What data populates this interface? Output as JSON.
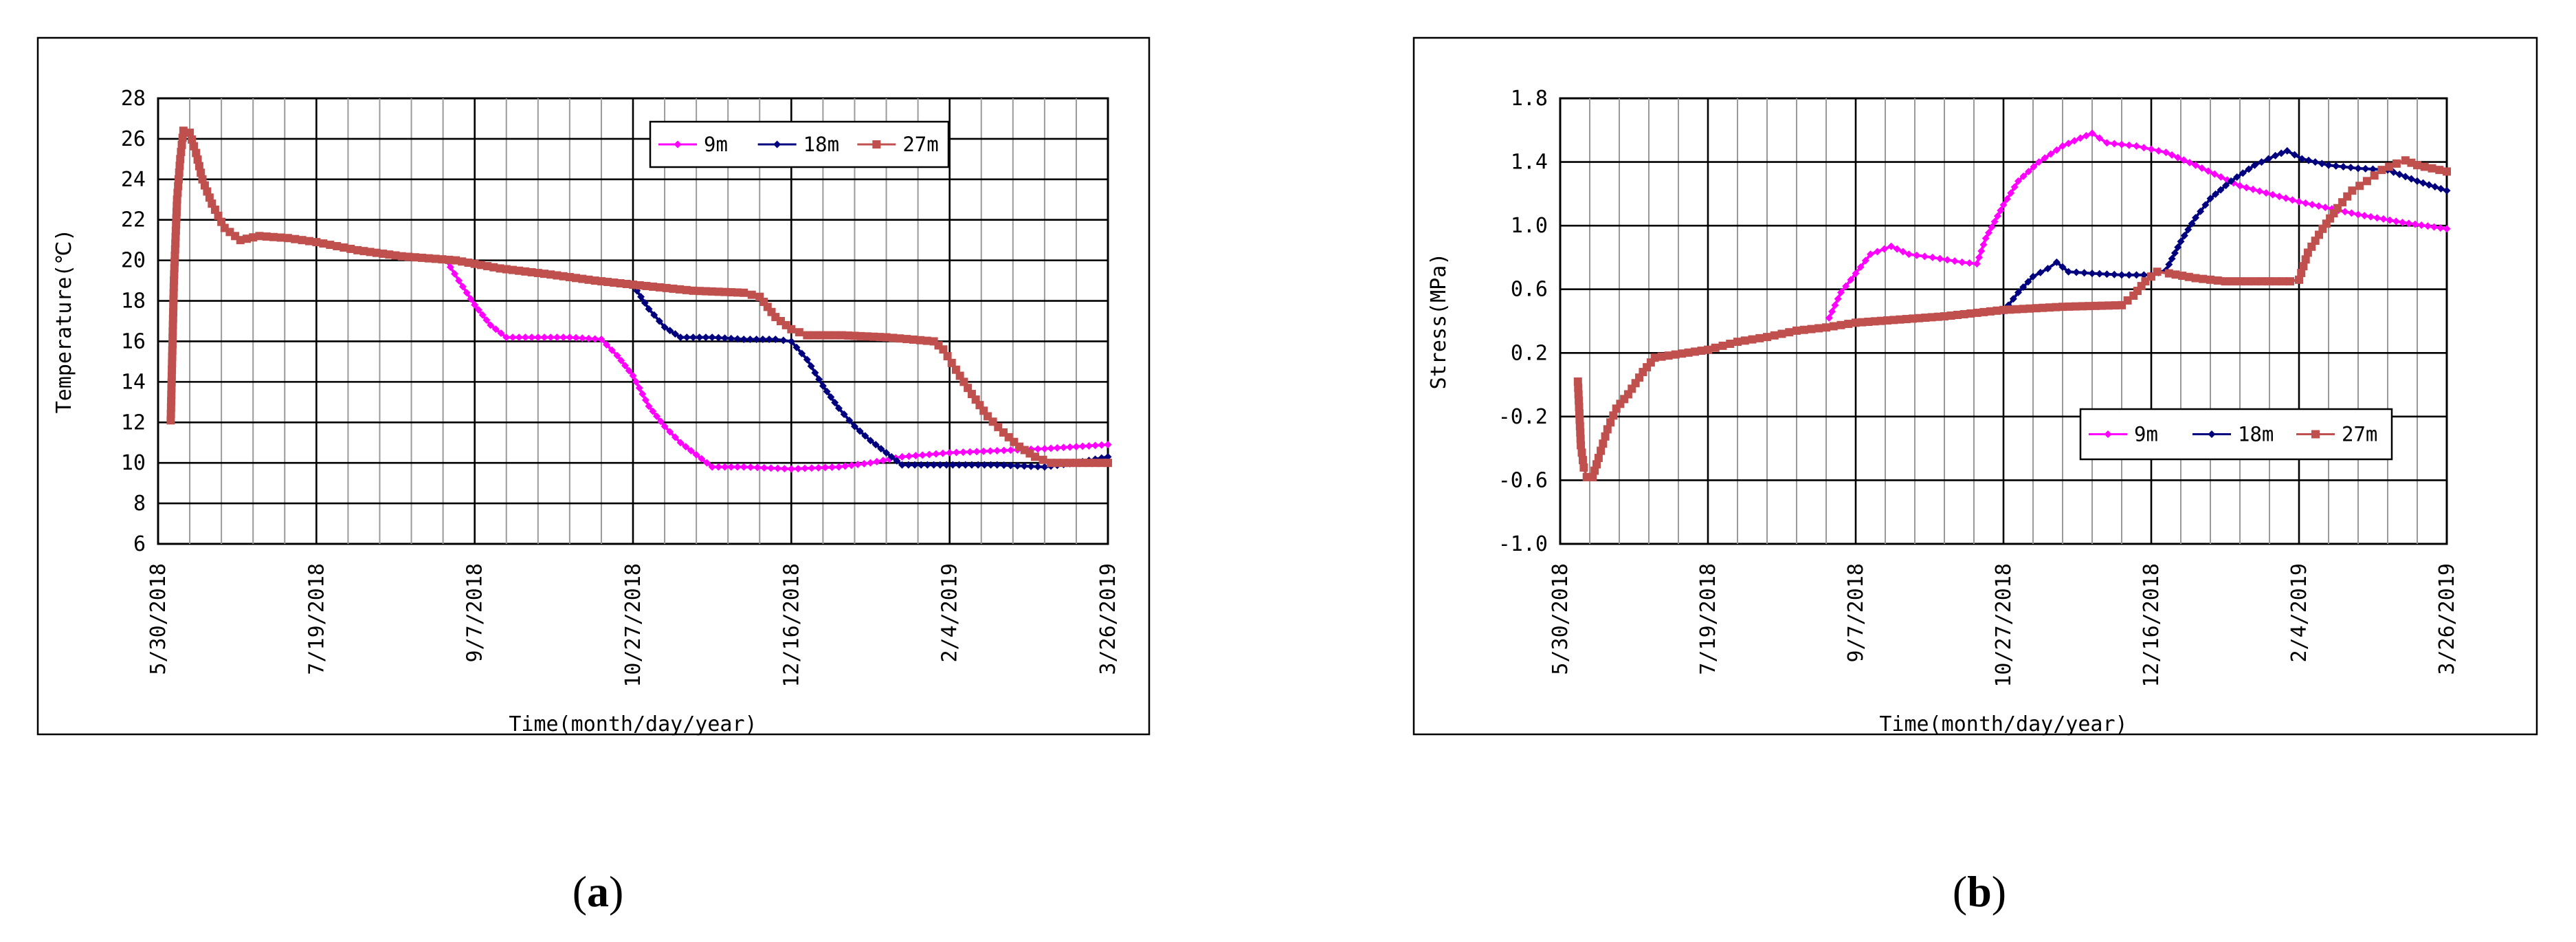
{
  "panels": [
    {
      "label_open": "(",
      "label_letter": "a",
      "label_close": ")"
    },
    {
      "label_open": "(",
      "label_letter": "b",
      "label_close": ")"
    }
  ],
  "chart_data": [
    {
      "type": "line",
      "title": "",
      "xlabel": "Time(month/day/year)",
      "ylabel": "Temperature(℃)",
      "ylim": [
        6,
        28
      ],
      "yticks": [
        "6",
        "8",
        "10",
        "12",
        "14",
        "16",
        "18",
        "20",
        "22",
        "24",
        "26",
        "28"
      ],
      "xlim": [
        "5/30/2018",
        "3/26/2019"
      ],
      "xticks": [
        "5/30/2018",
        "7/19/2018",
        "9/7/2018",
        "10/27/2018",
        "12/16/2018",
        "2/4/2019",
        "3/26/2019"
      ],
      "grid": true,
      "legend": "top-right",
      "series": [
        {
          "name": "9m",
          "color": "#ff00ff",
          "marker": "diamond",
          "points": [
            [
              "8/29/2018",
              20.0
            ],
            [
              "9/2/2018",
              19.0
            ],
            [
              "9/7/2018",
              17.8
            ],
            [
              "9/12/2018",
              16.8
            ],
            [
              "9/17/2018",
              16.2
            ],
            [
              "9/27/2018",
              16.2
            ],
            [
              "10/7/2018",
              16.2
            ],
            [
              "10/17/2018",
              16.1
            ],
            [
              "10/22/2018",
              15.3
            ],
            [
              "10/27/2018",
              14.3
            ],
            [
              "11/1/2018",
              12.8
            ],
            [
              "11/6/2018",
              11.8
            ],
            [
              "11/11/2018",
              11.0
            ],
            [
              "11/16/2018",
              10.4
            ],
            [
              "11/21/2018",
              9.8
            ],
            [
              "12/1/2018",
              9.8
            ],
            [
              "12/16/2018",
              9.7
            ],
            [
              "12/31/2018",
              9.8
            ],
            [
              "1/10/2019",
              10.0
            ],
            [
              "1/20/2019",
              10.3
            ],
            [
              "2/4/2019",
              10.5
            ],
            [
              "2/19/2019",
              10.6
            ],
            [
              "3/6/2019",
              10.7
            ],
            [
              "3/26/2019",
              10.9
            ]
          ]
        },
        {
          "name": "18m",
          "color": "#00007f",
          "marker": "diamond",
          "points": [
            [
              "10/27/2018",
              18.8
            ],
            [
              "11/1/2018",
              17.6
            ],
            [
              "11/6/2018",
              16.7
            ],
            [
              "11/11/2018",
              16.2
            ],
            [
              "11/21/2018",
              16.2
            ],
            [
              "12/1/2018",
              16.1
            ],
            [
              "12/11/2018",
              16.1
            ],
            [
              "12/16/2018",
              16.0
            ],
            [
              "12/21/2018",
              15.1
            ],
            [
              "12/26/2018",
              13.8
            ],
            [
              "12/31/2018",
              12.7
            ],
            [
              "1/5/2019",
              11.8
            ],
            [
              "1/10/2019",
              11.1
            ],
            [
              "1/15/2019",
              10.5
            ],
            [
              "1/20/2019",
              9.9
            ],
            [
              "1/30/2019",
              9.9
            ],
            [
              "2/9/2019",
              9.9
            ],
            [
              "2/19/2019",
              9.9
            ],
            [
              "3/6/2019",
              9.8
            ],
            [
              "3/16/2019",
              10.0
            ],
            [
              "3/26/2019",
              10.3
            ]
          ]
        },
        {
          "name": "27m",
          "color": "#c0504d",
          "marker": "square",
          "points": [
            [
              "6/3/2018",
              12.1
            ],
            [
              "6/4/2018",
              19.0
            ],
            [
              "6/5/2018",
              23.0
            ],
            [
              "6/6/2018",
              25.0
            ],
            [
              "6/7/2018",
              26.4
            ],
            [
              "6/9/2018",
              26.3
            ],
            [
              "6/11/2018",
              25.3
            ],
            [
              "6/13/2018",
              24.0
            ],
            [
              "6/16/2018",
              22.8
            ],
            [
              "6/20/2018",
              21.6
            ],
            [
              "6/25/2018",
              21.0
            ],
            [
              "7/1/2018",
              21.2
            ],
            [
              "7/10/2018",
              21.1
            ],
            [
              "7/19/2018",
              20.9
            ],
            [
              "8/1/2018",
              20.5
            ],
            [
              "8/15/2018",
              20.2
            ],
            [
              "9/1/2018",
              20.0
            ],
            [
              "9/15/2018",
              19.6
            ],
            [
              "10/1/2018",
              19.3
            ],
            [
              "10/15/2018",
              19.0
            ],
            [
              "10/27/2018",
              18.8
            ],
            [
              "11/15/2018",
              18.5
            ],
            [
              "12/1/2018",
              18.4
            ],
            [
              "12/6/2018",
              18.2
            ],
            [
              "12/11/2018",
              17.2
            ],
            [
              "12/16/2018",
              16.6
            ],
            [
              "12/21/2018",
              16.3
            ],
            [
              "1/1/2019",
              16.3
            ],
            [
              "1/15/2019",
              16.2
            ],
            [
              "1/30/2019",
              16.0
            ],
            [
              "2/2/2019",
              15.6
            ],
            [
              "2/6/2019",
              14.6
            ],
            [
              "2/11/2019",
              13.4
            ],
            [
              "2/16/2019",
              12.3
            ],
            [
              "2/21/2019",
              11.5
            ],
            [
              "2/26/2019",
              10.8
            ],
            [
              "3/3/2019",
              10.3
            ],
            [
              "3/8/2019",
              10.0
            ],
            [
              "3/26/2019",
              10.0
            ]
          ]
        }
      ]
    },
    {
      "type": "line",
      "title": "",
      "xlabel": "Time(month/day/year)",
      "ylabel": "Stress(MPa)",
      "ylim": [
        -1.0,
        1.8
      ],
      "yticks": [
        "-1.0",
        "-0.6",
        "-0.2",
        "0.2",
        "0.6",
        "1.0",
        "1.4",
        "1.8"
      ],
      "xlim": [
        "5/30/2018",
        "3/26/2019"
      ],
      "xticks": [
        "5/30/2018",
        "7/19/2018",
        "9/7/2018",
        "10/27/2018",
        "12/16/2018",
        "2/4/2019",
        "3/26/2019"
      ],
      "grid": true,
      "legend": "center-right",
      "series": [
        {
          "name": "9m",
          "color": "#ff00ff",
          "marker": "diamond",
          "points": [
            [
              "8/29/2018",
              0.42
            ],
            [
              "9/2/2018",
              0.58
            ],
            [
              "9/7/2018",
              0.7
            ],
            [
              "9/12/2018",
              0.82
            ],
            [
              "9/19/2018",
              0.87
            ],
            [
              "9/25/2018",
              0.82
            ],
            [
              "10/3/2018",
              0.8
            ],
            [
              "10/13/2018",
              0.77
            ],
            [
              "10/18/2018",
              0.76
            ],
            [
              "10/21/2018",
              0.92
            ],
            [
              "10/27/2018",
              1.13
            ],
            [
              "11/1/2018",
              1.28
            ],
            [
              "11/8/2018",
              1.4
            ],
            [
              "11/16/2018",
              1.5
            ],
            [
              "11/22/2018",
              1.55
            ],
            [
              "11/26/2018",
              1.58
            ],
            [
              "12/1/2018",
              1.52
            ],
            [
              "12/11/2018",
              1.5
            ],
            [
              "12/21/2018",
              1.46
            ],
            [
              "12/31/2018",
              1.38
            ],
            [
              "1/15/2019",
              1.25
            ],
            [
              "2/4/2019",
              1.15
            ],
            [
              "2/24/2019",
              1.07
            ],
            [
              "3/11/2019",
              1.02
            ],
            [
              "3/26/2019",
              0.98
            ]
          ]
        },
        {
          "name": "18m",
          "color": "#00007f",
          "marker": "diamond",
          "points": [
            [
              "10/27/2018",
              0.46
            ],
            [
              "11/1/2018",
              0.58
            ],
            [
              "11/6/2018",
              0.68
            ],
            [
              "11/11/2018",
              0.73
            ],
            [
              "11/14/2018",
              0.77
            ],
            [
              "11/18/2018",
              0.71
            ],
            [
              "11/26/2018",
              0.7
            ],
            [
              "12/6/2018",
              0.69
            ],
            [
              "12/16/2018",
              0.69
            ],
            [
              "12/21/2018",
              0.72
            ],
            [
              "12/26/2018",
              0.9
            ],
            [
              "12/31/2018",
              1.05
            ],
            [
              "1/5/2019",
              1.17
            ],
            [
              "1/12/2019",
              1.28
            ],
            [
              "1/20/2019",
              1.38
            ],
            [
              "1/27/2019",
              1.44
            ],
            [
              "1/31/2019",
              1.47
            ],
            [
              "2/5/2019",
              1.42
            ],
            [
              "2/14/2019",
              1.38
            ],
            [
              "2/24/2019",
              1.36
            ],
            [
              "3/6/2019",
              1.35
            ],
            [
              "3/16/2019",
              1.28
            ],
            [
              "3/26/2019",
              1.22
            ]
          ]
        },
        {
          "name": "27m",
          "color": "#c0504d",
          "marker": "square",
          "points": [
            [
              "6/5/2018",
              0.02
            ],
            [
              "6/6/2018",
              -0.38
            ],
            [
              "6/7/2018",
              -0.52
            ],
            [
              "6/8/2018",
              -0.58
            ],
            [
              "6/10/2018",
              -0.58
            ],
            [
              "6/12/2018",
              -0.46
            ],
            [
              "6/15/2018",
              -0.28
            ],
            [
              "6/18/2018",
              -0.15
            ],
            [
              "6/22/2018",
              -0.06
            ],
            [
              "6/27/2018",
              0.08
            ],
            [
              "7/1/2018",
              0.17
            ],
            [
              "7/8/2018",
              0.19
            ],
            [
              "7/19/2018",
              0.22
            ],
            [
              "7/29/2018",
              0.27
            ],
            [
              "8/8/2018",
              0.3
            ],
            [
              "8/18/2018",
              0.34
            ],
            [
              "8/28/2018",
              0.36
            ],
            [
              "9/7/2018",
              0.39
            ],
            [
              "9/22/2018",
              0.41
            ],
            [
              "10/7/2018",
              0.43
            ],
            [
              "10/27/2018",
              0.47
            ],
            [
              "11/16/2018",
              0.49
            ],
            [
              "12/6/2018",
              0.5
            ],
            [
              "12/10/2018",
              0.56
            ],
            [
              "12/14/2018",
              0.65
            ],
            [
              "12/18/2018",
              0.71
            ],
            [
              "12/22/2018",
              0.7
            ],
            [
              "12/31/2018",
              0.67
            ],
            [
              "1/10/2019",
              0.65
            ],
            [
              "1/20/2019",
              0.65
            ],
            [
              "2/1/2019",
              0.65
            ],
            [
              "2/4/2019",
              0.66
            ],
            [
              "2/7/2019",
              0.83
            ],
            [
              "2/12/2019",
              0.98
            ],
            [
              "2/17/2019",
              1.11
            ],
            [
              "2/22/2019",
              1.22
            ],
            [
              "2/27/2019",
              1.28
            ],
            [
              "3/4/2019",
              1.35
            ],
            [
              "3/9/2019",
              1.39
            ],
            [
              "3/12/2019",
              1.41
            ],
            [
              "3/16/2019",
              1.38
            ],
            [
              "3/26/2019",
              1.34
            ]
          ]
        }
      ]
    }
  ]
}
